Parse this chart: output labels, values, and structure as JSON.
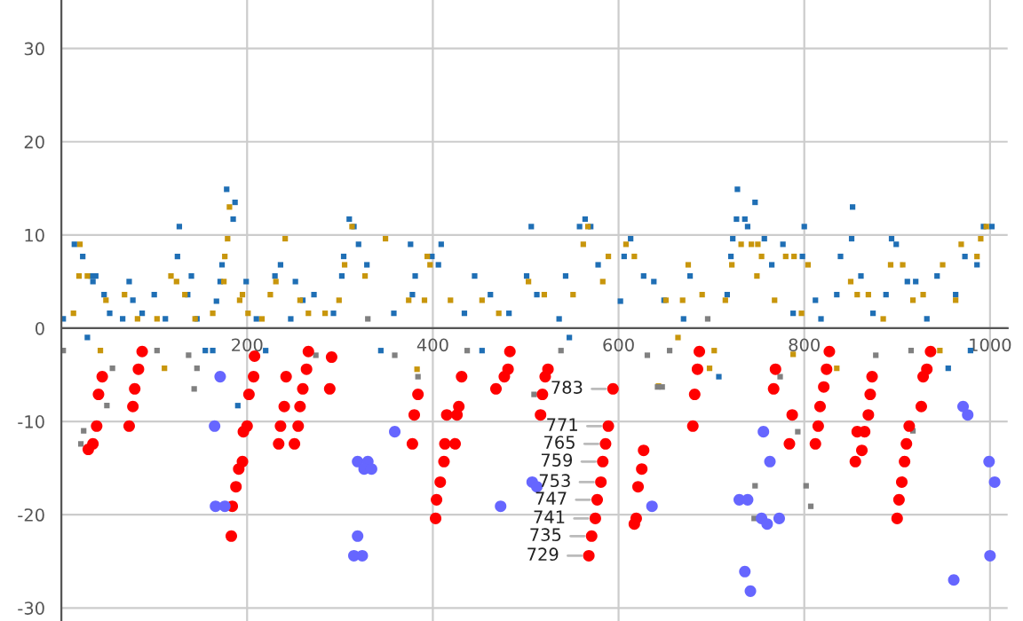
{
  "chart_data": {
    "type": "scatter",
    "xlim": [
      0,
      1019
    ],
    "ylim": [
      -31.4,
      35.2
    ],
    "xticks": [
      200,
      400,
      600,
      800,
      1000
    ],
    "yticks": [
      -30,
      -20,
      -10,
      0,
      10,
      20,
      30
    ],
    "grid": true,
    "series": [
      {
        "color": "#1f6fb5",
        "marker": "square",
        "x": [
          2,
          14,
          23,
          28,
          32,
          34,
          37,
          46,
          52,
          66,
          73,
          77,
          87,
          100,
          112,
          125,
          127,
          136,
          140,
          146,
          155,
          163,
          167,
          171,
          173,
          178,
          185,
          187,
          190,
          199,
          210,
          220,
          230,
          236,
          252,
          247,
          260,
          272,
          293,
          302,
          304,
          310,
          315,
          320,
          329,
          376,
          399,
          409,
          406,
          381,
          378,
          358,
          434,
          445,
          462,
          482,
          501,
          506,
          512,
          536,
          543,
          558,
          564,
          570,
          578,
          602,
          606,
          613,
          627,
          638,
          649,
          677,
          670,
          344,
          453,
          547,
          728,
          727,
          736,
          747,
          739,
          723,
          721,
          717,
          757,
          765,
          777,
          788,
          798,
          800,
          812,
          818,
          835,
          839,
          852,
          851,
          861,
          874,
          888,
          894,
          899,
          911,
          920,
          932,
          943,
          963,
          973,
          986,
          993,
          1002,
          979,
          955,
          708
        ],
        "values": [
          1.0,
          9.0,
          7.7,
          -1.0,
          5.6,
          5.0,
          5.6,
          3.6,
          1.6,
          1.0,
          5.0,
          3.0,
          1.6,
          3.6,
          1.0,
          7.7,
          10.9,
          3.6,
          5.6,
          1.0,
          -2.4,
          -2.4,
          2.9,
          5.0,
          6.8,
          14.9,
          11.7,
          13.5,
          -8.3,
          5.0,
          1.0,
          -2.4,
          5.6,
          6.8,
          5.0,
          1.0,
          3.0,
          3.6,
          1.6,
          5.6,
          7.7,
          11.7,
          10.9,
          9.0,
          6.8,
          9.0,
          7.7,
          9.0,
          6.8,
          5.6,
          3.6,
          1.6,
          1.6,
          5.6,
          3.6,
          1.6,
          5.6,
          10.9,
          3.6,
          1.0,
          5.6,
          10.9,
          11.7,
          10.9,
          6.8,
          2.9,
          7.7,
          9.6,
          5.6,
          5.0,
          3.0,
          5.6,
          1.0,
          -2.4,
          -2.4,
          -1.0,
          14.9,
          11.7,
          11.7,
          13.5,
          10.9,
          9.6,
          7.7,
          3.6,
          9.6,
          6.8,
          9.0,
          1.6,
          7.7,
          10.9,
          3.0,
          1.0,
          3.6,
          7.7,
          13.0,
          9.6,
          5.6,
          1.6,
          3.6,
          9.6,
          9.0,
          5.0,
          5.0,
          1.0,
          5.6,
          3.6,
          7.7,
          6.8,
          10.9,
          10.9,
          -2.4,
          -4.3,
          -5.2
        ]
      },
      {
        "color": "#c8960c",
        "marker": "square",
        "x": [
          20,
          19,
          28,
          13,
          42,
          48,
          68,
          82,
          103,
          111,
          118,
          124,
          133,
          144,
          163,
          175,
          176,
          179,
          181,
          192,
          195,
          201,
          216,
          225,
          231,
          241,
          257,
          266,
          284,
          299,
          305,
          313,
          327,
          349,
          394,
          397,
          419,
          391,
          374,
          453,
          471,
          503,
          520,
          551,
          562,
          567,
          589,
          583,
          608,
          617,
          651,
          669,
          675,
          383,
          643,
          664,
          690,
          715,
          722,
          732,
          743,
          750,
          754,
          749,
          768,
          780,
          789,
          804,
          797,
          850,
          857,
          869,
          885,
          893,
          906,
          917,
          928,
          949,
          969,
          963,
          986,
          990,
          996,
          698,
          788,
          835,
          703,
          946
        ],
        "values": [
          9.0,
          5.6,
          5.6,
          1.6,
          -2.4,
          3.0,
          3.6,
          1.0,
          1.0,
          -4.3,
          5.6,
          5.0,
          3.6,
          1.0,
          1.6,
          5.0,
          7.7,
          9.6,
          13.0,
          3.0,
          3.6,
          1.6,
          1.0,
          3.6,
          5.0,
          9.6,
          3.0,
          1.6,
          1.6,
          3.0,
          6.8,
          10.9,
          5.6,
          9.6,
          7.7,
          6.8,
          3.0,
          3.0,
          3.0,
          3.0,
          1.6,
          5.0,
          3.6,
          3.6,
          9.0,
          10.9,
          7.7,
          5.0,
          9.0,
          7.7,
          3.0,
          3.0,
          6.8,
          -4.4,
          -6.2,
          -1.0,
          3.6,
          3.0,
          6.8,
          9.0,
          9.0,
          9.0,
          7.7,
          5.6,
          3.0,
          7.7,
          7.7,
          6.8,
          1.6,
          5.0,
          3.6,
          3.6,
          1.0,
          6.8,
          6.8,
          3.0,
          3.6,
          6.8,
          9.0,
          3.0,
          7.7,
          9.6,
          10.9,
          -4.3,
          -2.8,
          -4.3,
          -2.4,
          -2.4
        ]
      },
      {
        "color": "#808080",
        "marker": "square",
        "x": [
          2,
          21,
          24,
          49,
          55,
          103,
          143,
          137,
          146,
          274,
          330,
          359,
          384,
          437,
          509,
          538,
          631,
          655,
          642,
          647,
          747,
          746,
          793,
          802,
          807,
          877,
          917,
          915,
          774,
          696
        ],
        "values": [
          -2.4,
          -12.4,
          -11.0,
          -8.3,
          -4.3,
          -2.4,
          -6.5,
          -2.9,
          -4.3,
          -2.9,
          1.0,
          -2.9,
          -5.2,
          -2.4,
          -7.1,
          -2.4,
          -2.9,
          -2.4,
          -6.3,
          -6.3,
          -16.9,
          -20.4,
          -11.1,
          -16.9,
          -19.1,
          -2.9,
          -11.0,
          -2.4,
          -5.2,
          1.0
        ]
      },
      {
        "color": "#ff0000",
        "marker": "circle",
        "x": [
          29,
          34,
          38,
          40,
          44,
          87,
          83,
          79,
          77,
          73,
          183,
          184,
          188,
          191,
          195,
          196,
          200,
          202,
          207,
          208,
          234,
          236,
          240,
          242,
          251,
          255,
          257,
          260,
          264,
          266,
          289,
          291,
          403,
          404,
          408,
          412,
          413,
          424,
          378,
          380,
          384,
          415,
          426,
          428,
          431,
          468,
          477,
          481,
          483,
          516,
          518,
          521,
          524,
          594,
          589,
          586,
          583,
          581,
          577,
          575,
          571,
          568,
          627,
          625,
          621,
          619,
          617,
          680,
          682,
          685,
          687,
          784,
          787,
          767,
          769,
          812,
          815,
          817,
          821,
          824,
          827,
          855,
          857,
          862,
          865,
          869,
          871,
          873,
          900,
          902,
          905,
          908,
          910,
          913,
          926,
          928,
          932,
          936
        ],
        "values": [
          -13.0,
          -12.4,
          -10.5,
          -7.1,
          -5.2,
          -2.5,
          -4.4,
          -6.5,
          -8.4,
          -10.5,
          -22.3,
          -19.1,
          -17.0,
          -15.1,
          -14.3,
          -11.1,
          -10.5,
          -7.1,
          -5.2,
          -3.0,
          -12.4,
          -10.5,
          -8.4,
          -5.2,
          -12.4,
          -10.5,
          -8.4,
          -6.5,
          -4.4,
          -2.5,
          -6.5,
          -3.1,
          -20.4,
          -18.4,
          -16.5,
          -14.3,
          -12.4,
          -12.4,
          -12.4,
          -9.3,
          -7.1,
          -9.3,
          -9.3,
          -8.4,
          -5.2,
          -6.5,
          -5.2,
          -4.4,
          -2.5,
          -9.3,
          -7.1,
          -5.2,
          -4.4,
          -6.5,
          -10.5,
          -12.4,
          -14.3,
          -16.5,
          -18.4,
          -20.4,
          -22.3,
          -24.4,
          -13.1,
          -15.1,
          -17.0,
          -20.4,
          -21.0,
          -10.5,
          -7.1,
          -4.4,
          -2.5,
          -12.4,
          -9.3,
          -6.5,
          -4.4,
          -12.4,
          -10.5,
          -8.4,
          -6.3,
          -4.4,
          -2.5,
          -14.3,
          -11.1,
          -13.1,
          -11.1,
          -9.3,
          -7.1,
          -5.2,
          -20.4,
          -18.4,
          -16.5,
          -14.3,
          -12.4,
          -10.5,
          -8.4,
          -5.2,
          -4.4,
          -2.5
        ]
      },
      {
        "color": "#6666ff",
        "marker": "circle",
        "x": [
          171,
          165,
          166,
          176,
          319,
          330,
          326,
          334,
          319,
          315,
          324,
          359,
          507,
          512,
          473,
          636,
          756,
          763,
          730,
          739,
          754,
          760,
          773,
          971,
          976,
          999,
          1005,
          1000,
          736,
          742,
          961
        ],
        "values": [
          -5.2,
          -10.5,
          -19.1,
          -19.1,
          -14.3,
          -14.3,
          -15.1,
          -15.1,
          -22.3,
          -24.4,
          -24.4,
          -11.1,
          -16.5,
          -17.0,
          -19.1,
          -19.1,
          -11.1,
          -14.3,
          -18.4,
          -18.4,
          -20.4,
          -21.0,
          -20.4,
          -8.4,
          -9.3,
          -14.3,
          -16.5,
          -24.4,
          -26.1,
          -28.2,
          -27.0
        ]
      }
    ],
    "annotations": [
      {
        "text": "783",
        "x": 594,
        "y": -6.5
      },
      {
        "text": "771",
        "x": 589,
        "y": -10.5
      },
      {
        "text": "765",
        "x": 586,
        "y": -12.4
      },
      {
        "text": "759",
        "x": 583,
        "y": -14.3
      },
      {
        "text": "753",
        "x": 581,
        "y": -16.5
      },
      {
        "text": "747",
        "x": 577,
        "y": -18.4
      },
      {
        "text": "741",
        "x": 575,
        "y": -20.4
      },
      {
        "text": "735",
        "x": 571,
        "y": -22.3
      },
      {
        "text": "729",
        "x": 568,
        "y": -24.4
      }
    ]
  }
}
